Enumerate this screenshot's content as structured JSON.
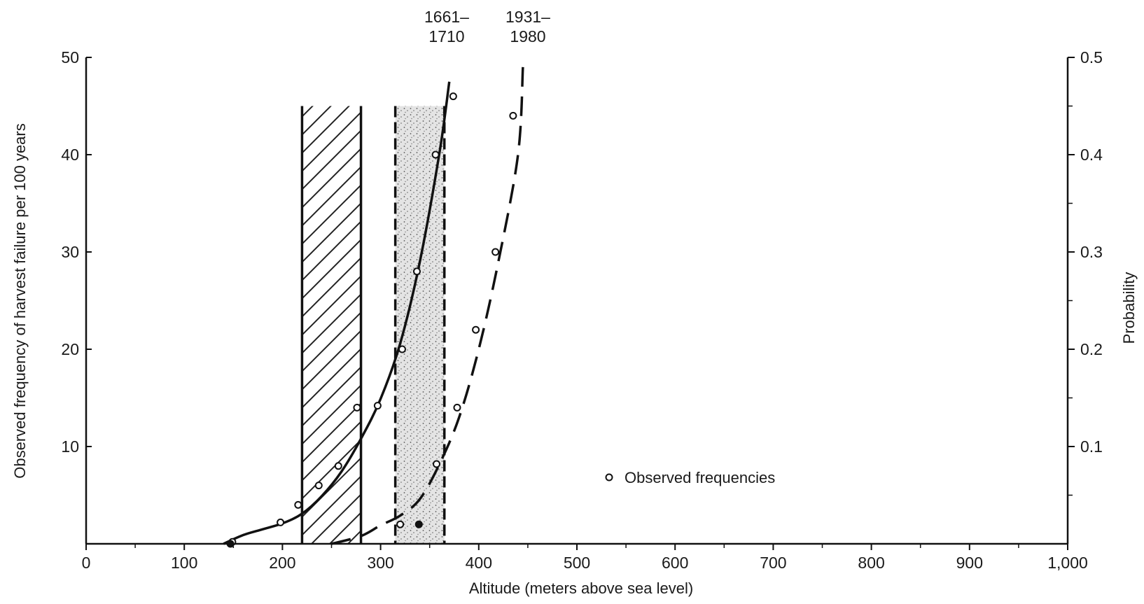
{
  "chart_data": {
    "type": "scatter",
    "title": "",
    "xlabel": "Altitude (meters above sea level)",
    "ylabel": "Observed frequency of harvest failure per 100 years",
    "y2label": "Probability",
    "xlim": [
      0,
      1000
    ],
    "ylim": [
      0,
      50
    ],
    "y2lim": [
      0,
      0.5
    ],
    "x_ticks": [
      0,
      100,
      200,
      300,
      400,
      500,
      600,
      700,
      800,
      900,
      1000
    ],
    "x_tick_labels": [
      "0",
      "100",
      "200",
      "300",
      "400",
      "500",
      "600",
      "700",
      "800",
      "900",
      "1,000"
    ],
    "y_ticks": [
      10,
      20,
      30,
      40,
      50
    ],
    "y_tick_labels": [
      "10",
      "20",
      "30",
      "40",
      "50"
    ],
    "y2_ticks": [
      0.1,
      0.2,
      0.3,
      0.4,
      0.5
    ],
    "y2_tick_labels": [
      "0.1",
      "0.2",
      "0.3",
      "0.4",
      "0.5"
    ],
    "grid": false,
    "legend": {
      "position": "center-right",
      "entries": [
        "Observed frequencies"
      ]
    },
    "periods": [
      {
        "label_line1": "1661–",
        "label_line2": "1710",
        "band": [
          220,
          280
        ],
        "band_fill": "hatched",
        "curve_style": "solid"
      },
      {
        "label_line1": "1931–",
        "label_line2": "1980",
        "band": [
          315,
          365
        ],
        "band_fill": "stippled",
        "curve_style": "dashed"
      }
    ],
    "series": [
      {
        "name": "1661–1710",
        "style": "solid-curve",
        "x": [
          140,
          160,
          180,
          200,
          220,
          240,
          260,
          280,
          300,
          320,
          340,
          360,
          370
        ],
        "y": [
          0,
          0.9,
          1.5,
          2.1,
          3.1,
          4.9,
          7.4,
          10.8,
          14.9,
          20.6,
          29.0,
          40.2,
          47.5
        ]
      },
      {
        "name": "1931–1980",
        "style": "dashed-curve",
        "x": [
          250,
          280,
          300,
          320,
          340,
          360,
          380,
          400,
          420,
          440,
          445
        ],
        "y": [
          0,
          0.8,
          1.9,
          2.9,
          4.6,
          8.2,
          13.0,
          20.0,
          29.0,
          40.0,
          49.0
        ]
      },
      {
        "name": "Observed frequencies",
        "style": "open-circles",
        "points": [
          [
            149,
            0.2
          ],
          [
            198,
            2.2
          ],
          [
            216,
            4.0
          ],
          [
            237,
            6.0
          ],
          [
            257,
            8.0
          ],
          [
            276,
            14.0
          ],
          [
            297,
            14.2
          ],
          [
            320,
            2.0
          ],
          [
            322,
            20.0
          ],
          [
            337,
            28.0
          ],
          [
            357,
            8.2
          ],
          [
            356,
            40.0
          ],
          [
            374,
            46.0
          ],
          [
            378,
            14.0
          ],
          [
            397,
            22.0
          ],
          [
            417,
            30.0
          ],
          [
            435,
            44.0
          ]
        ]
      },
      {
        "name": "",
        "style": "filled-circles",
        "points": [
          [
            147,
            0.0
          ],
          [
            339,
            2.0
          ]
        ]
      }
    ]
  }
}
